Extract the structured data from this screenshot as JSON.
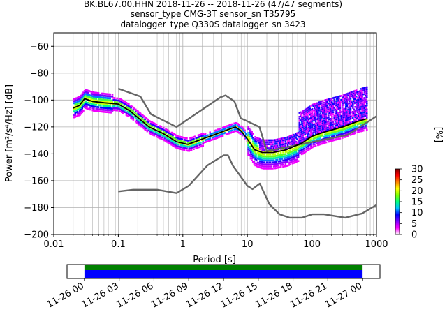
{
  "chart_data": [
    {
      "type": "heatmap",
      "title_lines": [
        "BK.BL67.00.HHN   2018-11-26 -- 2018-11-26  (47/47 segments)",
        "sensor_type CMG-3T sensor_sn T35795",
        "datalogger_type Q330S datalogger_sn 3423"
      ],
      "xlabel": "Period [s]",
      "ylabel": "Power [m²/s⁴/Hz] [dB]",
      "x_scale": "log",
      "xlim": [
        0.01,
        1000
      ],
      "ylim": [
        -200,
        -50
      ],
      "x_ticks": [
        0.01,
        0.1,
        1,
        10,
        100,
        1000
      ],
      "x_tick_labels": [
        "0.01",
        "0.1",
        "1",
        "10",
        "100",
        "1000"
      ],
      "y_ticks": [
        -200,
        -180,
        -160,
        -140,
        -120,
        -100,
        -80,
        -60
      ],
      "y_tick_labels": [
        "−200",
        "−180",
        "−160",
        "−140",
        "−120",
        "−100",
        "−80",
        "−60"
      ],
      "grid": true,
      "colorbar": {
        "label": "[%]",
        "range": [
          0,
          30
        ],
        "ticks": [
          0,
          5,
          10,
          15,
          20,
          25,
          30
        ],
        "colors": [
          "#ffffff",
          "#ff00ff",
          "#8000ff",
          "#0000ff",
          "#00c0ff",
          "#00ff80",
          "#80ff00",
          "#ffff00",
          "#ff8000",
          "#ff0000",
          "#800000"
        ]
      },
      "series": [
        {
          "role": "new-high-noise-model",
          "color": "#666666",
          "x": [
            0.1,
            0.22,
            0.32,
            0.8,
            3.8,
            4.6,
            6.3,
            7.9,
            15.4,
            20,
            354.8,
            1000
          ],
          "y": [
            -91.5,
            -97.4,
            -110.5,
            -120,
            -98,
            -96.5,
            -101,
            -113.5,
            -120,
            -138,
            -126,
            -112
          ]
        },
        {
          "role": "new-low-noise-model",
          "color": "#666666",
          "x": [
            0.1,
            0.17,
            0.4,
            0.8,
            1.24,
            2.4,
            4.3,
            5.0,
            6.0,
            10.0,
            12.0,
            15.6,
            21.9,
            31.6,
            45,
            70,
            101,
            154,
            328,
            600,
            1000
          ],
          "y": [
            -168,
            -166.7,
            -166.7,
            -169.2,
            -163.7,
            -148.6,
            -141.1,
            -141.1,
            -149,
            -163.8,
            -166.2,
            -162.1,
            -177.5,
            -185,
            -187.5,
            -187.5,
            -185,
            -185,
            -187.5,
            -184.4,
            -178
          ]
        },
        {
          "role": "mode",
          "color": "#000000",
          "x": [
            0.02,
            0.025,
            0.03,
            0.04,
            0.06,
            0.1,
            0.15,
            0.3,
            0.5,
            0.8,
            1.2,
            2,
            3,
            5,
            6.5,
            8,
            10,
            13,
            17,
            25,
            40,
            70,
            100,
            150,
            300,
            500,
            700
          ],
          "y": [
            -106,
            -104,
            -99,
            -101,
            -102,
            -103,
            -108,
            -120,
            -125,
            -131,
            -133,
            -129,
            -126,
            -122,
            -120,
            -123,
            -129,
            -137,
            -139,
            -139,
            -137,
            -132,
            -127,
            -124,
            -120,
            -116,
            -114
          ]
        }
      ],
      "psd_cloud_note": "Probability density cloud spans roughly 0.02 s to 700 s; densest near the mode curve, with a wide magenta fringe above -100 dB at long periods."
    },
    {
      "type": "timeline",
      "x_tick_labels": [
        "11-26 00",
        "11-26 03",
        "11-26 06",
        "11-26 09",
        "11-26 12",
        "11-26 15",
        "11-26 18",
        "11-26 21",
        "11-27 00"
      ],
      "x_range_hours": [
        -1.5,
        25.5
      ],
      "coverage": {
        "start_hour": 0,
        "end_hour": 24,
        "band_colors": [
          "#008000",
          "#0000ff"
        ]
      }
    }
  ]
}
